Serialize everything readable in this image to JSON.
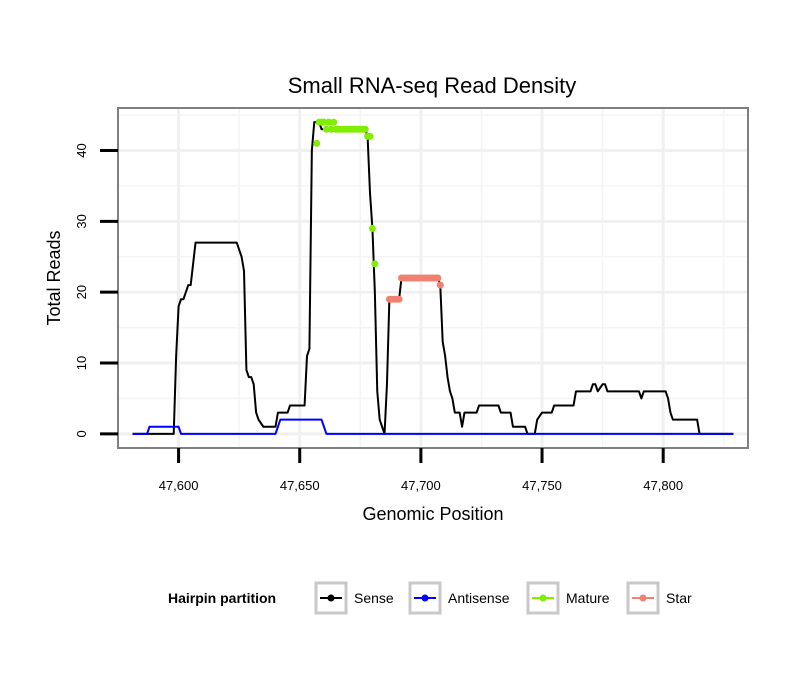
{
  "chart_data": {
    "type": "line",
    "title": "Small RNA-seq Read Density",
    "xlabel": "Genomic Position",
    "ylabel": "Total Reads",
    "xlim": [
      47575,
      47835
    ],
    "ylim": [
      -2,
      46
    ],
    "x_ticks": [
      47600,
      47650,
      47700,
      47750,
      47800
    ],
    "x_tick_labels": [
      "47,600",
      "47,650",
      "47,700",
      "47,750",
      "47,800"
    ],
    "y_ticks": [
      0,
      10,
      20,
      30,
      40
    ],
    "y_tick_labels": [
      "0",
      "10",
      "20",
      "30",
      "40"
    ],
    "grid": true,
    "legend": {
      "title": "Hairpin partition",
      "position": "bottom",
      "entries": [
        "Sense",
        "Antisense",
        "Mature",
        "Star"
      ]
    },
    "colors": {
      "Sense": "#000000",
      "Antisense": "#0000ff",
      "Mature": "#80ee00",
      "Star": "#f08070"
    },
    "series": [
      {
        "name": "Sense",
        "style": "line",
        "x": [
          47581,
          47598,
          47599,
          47600,
          47601,
          47602,
          47603,
          47604,
          47605,
          47607,
          47624,
          47625,
          47626,
          47627,
          47628,
          47629,
          47630,
          47631,
          47632,
          47633,
          47635,
          47636,
          47640,
          47641,
          47645,
          47646,
          47652,
          47653,
          47654,
          47655,
          47656,
          47657,
          47658,
          47659,
          47660,
          47677,
          47678,
          47679,
          47680,
          47681,
          47682,
          47683,
          47684,
          47685,
          47686,
          47687,
          47688,
          47689,
          47690,
          47691,
          47692,
          47693,
          47707,
          47708,
          47709,
          47710,
          47711,
          47712,
          47713,
          47714,
          47715,
          47716,
          47717,
          47718,
          47719,
          47722,
          47723,
          47724,
          47725,
          47732,
          47733,
          47737,
          47738,
          47743,
          47744,
          47746,
          47747,
          47748,
          47750,
          47751,
          47752,
          47754,
          47755,
          47756,
          47757,
          47763,
          47764,
          47765,
          47770,
          47771,
          47772,
          47773,
          47775,
          47776,
          47777,
          47778,
          47779,
          47780,
          47781,
          47790,
          47791,
          47792,
          47793,
          47800,
          47801,
          47802,
          47803,
          47804,
          47805,
          47806,
          47807,
          47814,
          47815,
          47829
        ],
        "y": [
          0,
          0,
          11,
          18,
          19,
          19,
          20,
          21,
          21,
          27,
          27,
          26,
          25,
          23,
          9,
          8,
          8,
          7,
          3,
          2,
          1,
          1,
          1,
          3,
          3,
          4,
          4,
          11,
          12,
          40,
          44,
          44,
          44,
          43,
          43,
          43,
          42,
          34,
          29,
          20,
          6,
          2,
          1,
          0,
          7,
          19,
          19,
          19,
          19,
          19,
          22,
          22,
          22,
          21,
          13,
          11,
          8,
          6,
          5,
          3,
          3,
          3,
          1,
          3,
          3,
          3,
          3,
          4,
          4,
          4,
          3,
          3,
          1,
          1,
          0,
          0,
          0,
          2,
          3,
          3,
          3,
          3,
          4,
          4,
          4,
          4,
          6,
          6,
          6,
          7,
          7,
          6,
          7,
          7,
          6,
          6,
          6,
          6,
          6,
          6,
          5,
          6,
          6,
          6,
          6,
          5,
          3,
          2,
          2,
          2,
          2,
          2,
          0,
          0
        ]
      },
      {
        "name": "Antisense",
        "style": "line",
        "x": [
          47581,
          47587,
          47588,
          47600,
          47601,
          47640,
          47641,
          47642,
          47651,
          47652,
          47659,
          47660,
          47661,
          47829
        ],
        "y": [
          0,
          0,
          1,
          1,
          0,
          0,
          1,
          2,
          2,
          2,
          2,
          1,
          0,
          0
        ]
      },
      {
        "name": "Mature",
        "style": "points",
        "x": [
          47657,
          47658,
          47659,
          47660,
          47661,
          47662,
          47663,
          47664,
          47665,
          47666,
          47667,
          47668,
          47669,
          47670,
          47671,
          47672,
          47673,
          47674,
          47675,
          47676,
          47677,
          47678,
          47679,
          47680,
          47681
        ],
        "y": [
          41,
          44,
          44,
          44,
          43,
          44,
          43,
          44,
          43,
          43,
          43,
          43,
          43,
          43,
          43,
          43,
          43,
          43,
          43,
          43,
          43,
          42,
          42,
          29,
          24
        ]
      },
      {
        "name": "Star",
        "style": "points",
        "x": [
          47687,
          47688,
          47689,
          47690,
          47691,
          47692,
          47693,
          47694,
          47695,
          47696,
          47697,
          47698,
          47699,
          47700,
          47701,
          47702,
          47703,
          47704,
          47705,
          47706,
          47707,
          47708
        ],
        "y": [
          19,
          19,
          19,
          19,
          19,
          22,
          22,
          22,
          22,
          22,
          22,
          22,
          22,
          22,
          22,
          22,
          22,
          22,
          22,
          22,
          22,
          21
        ]
      }
    ]
  }
}
